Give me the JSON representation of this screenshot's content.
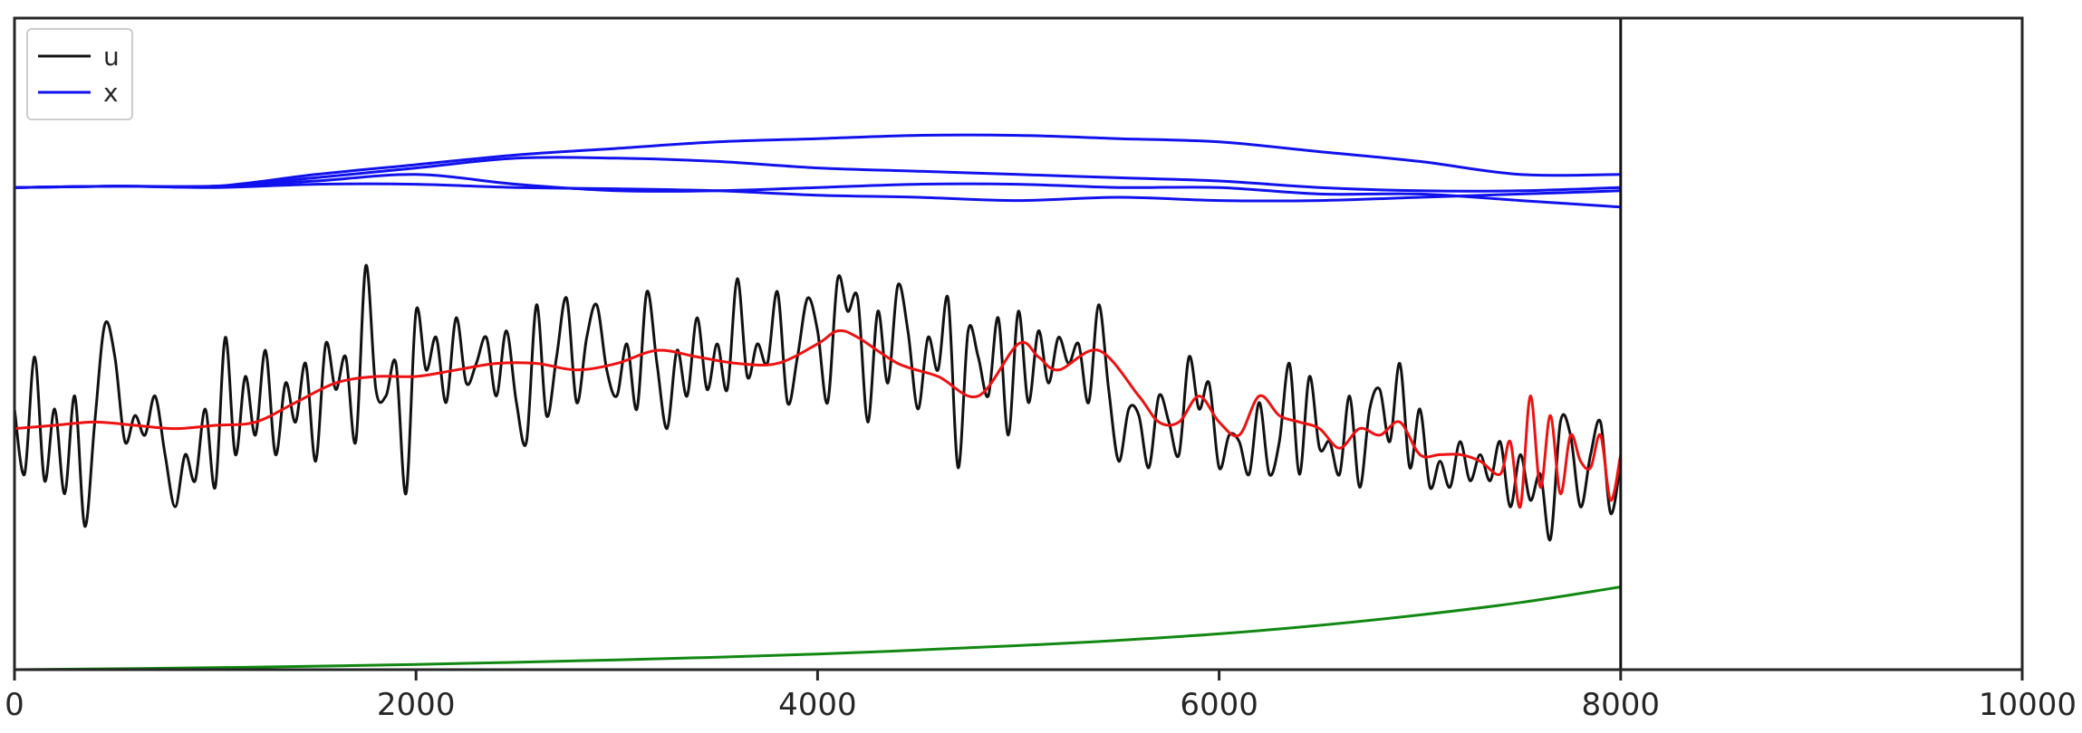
{
  "chart_data": {
    "type": "line",
    "title": "",
    "xlabel": "",
    "ylabel": "",
    "xlim": [
      0,
      10000
    ],
    "ylim": [
      0,
      1
    ],
    "x_ticks": [
      0,
      2000,
      4000,
      6000,
      8000,
      10000
    ],
    "x_tick_labels": [
      "0",
      "2000",
      "4000",
      "6000",
      "8000",
      "10000"
    ],
    "y_ticks_shown": false,
    "grid": false,
    "legend": {
      "placement": "top-left",
      "entries": [
        {
          "label": "u",
          "color": "#111111"
        },
        {
          "label": "x",
          "color": "#1111ee"
        }
      ]
    },
    "vline": {
      "x": 8000,
      "color": "#111111"
    },
    "series": [
      {
        "name": "u",
        "color": "#111111",
        "x": [
          0,
          50,
          100,
          150,
          200,
          250,
          300,
          350,
          400,
          450,
          500,
          550,
          600,
          650,
          700,
          750,
          800,
          850,
          900,
          950,
          1000,
          1050,
          1100,
          1150,
          1200,
          1250,
          1300,
          1350,
          1400,
          1450,
          1500,
          1550,
          1600,
          1650,
          1700,
          1750,
          1800,
          1850,
          1900,
          1950,
          2000,
          2050,
          2100,
          2150,
          2200,
          2250,
          2300,
          2350,
          2400,
          2450,
          2500,
          2550,
          2600,
          2650,
          2700,
          2750,
          2800,
          2850,
          2900,
          2950,
          3000,
          3050,
          3100,
          3150,
          3200,
          3250,
          3300,
          3350,
          3400,
          3450,
          3500,
          3550,
          3600,
          3650,
          3700,
          3750,
          3800,
          3850,
          3900,
          3950,
          4000,
          4050,
          4100,
          4150,
          4200,
          4250,
          4300,
          4350,
          4400,
          4450,
          4500,
          4550,
          4600,
          4650,
          4700,
          4750,
          4800,
          4850,
          4900,
          4950,
          5000,
          5050,
          5100,
          5150,
          5200,
          5250,
          5300,
          5350,
          5400,
          5450,
          5500,
          5550,
          5600,
          5650,
          5700,
          5750,
          5800,
          5850,
          5900,
          5950,
          6000,
          6050,
          6100,
          6150,
          6200,
          6250,
          6300,
          6350,
          6400,
          6450,
          6500,
          6550,
          6600,
          6650,
          6700,
          6750,
          6800,
          6850,
          6900,
          6950,
          7000,
          7050,
          7100,
          7150,
          7200,
          7250,
          7300,
          7350,
          7400,
          7450,
          7500,
          7550,
          7600,
          7650,
          7700,
          7750,
          7800,
          7850,
          7900,
          7950,
          8000
        ],
        "values": [
          0.4,
          0.3,
          0.48,
          0.29,
          0.4,
          0.27,
          0.42,
          0.22,
          0.38,
          0.53,
          0.48,
          0.35,
          0.39,
          0.36,
          0.42,
          0.33,
          0.25,
          0.33,
          0.29,
          0.4,
          0.28,
          0.51,
          0.33,
          0.45,
          0.36,
          0.49,
          0.33,
          0.44,
          0.38,
          0.47,
          0.32,
          0.5,
          0.43,
          0.48,
          0.35,
          0.62,
          0.43,
          0.42,
          0.47,
          0.27,
          0.55,
          0.46,
          0.51,
          0.41,
          0.54,
          0.44,
          0.47,
          0.51,
          0.42,
          0.52,
          0.41,
          0.35,
          0.56,
          0.39,
          0.48,
          0.57,
          0.41,
          0.51,
          0.56,
          0.46,
          0.42,
          0.5,
          0.4,
          0.58,
          0.47,
          0.37,
          0.49,
          0.42,
          0.54,
          0.43,
          0.5,
          0.43,
          0.6,
          0.45,
          0.5,
          0.47,
          0.58,
          0.41,
          0.48,
          0.57,
          0.52,
          0.41,
          0.6,
          0.55,
          0.57,
          0.38,
          0.55,
          0.44,
          0.59,
          0.52,
          0.4,
          0.51,
          0.46,
          0.57,
          0.31,
          0.52,
          0.48,
          0.42,
          0.54,
          0.36,
          0.55,
          0.41,
          0.52,
          0.44,
          0.51,
          0.47,
          0.5,
          0.41,
          0.56,
          0.43,
          0.32,
          0.4,
          0.39,
          0.31,
          0.42,
          0.38,
          0.33,
          0.48,
          0.4,
          0.44,
          0.31,
          0.36,
          0.35,
          0.3,
          0.41,
          0.3,
          0.35,
          0.47,
          0.3,
          0.45,
          0.34,
          0.35,
          0.3,
          0.42,
          0.28,
          0.4,
          0.43,
          0.35,
          0.47,
          0.31,
          0.4,
          0.28,
          0.32,
          0.28,
          0.35,
          0.29,
          0.33,
          0.29,
          0.35,
          0.25,
          0.33,
          0.26,
          0.3,
          0.2,
          0.38,
          0.36,
          0.25,
          0.33,
          0.38,
          0.24,
          0.32
        ],
        "smoothed": {
          "color": "#ee1111",
          "x": [
            0,
            200,
            400,
            600,
            800,
            1000,
            1200,
            1400,
            1600,
            1800,
            2000,
            2200,
            2400,
            2600,
            2800,
            3000,
            3200,
            3400,
            3600,
            3800,
            4000,
            4100,
            4200,
            4400,
            4600,
            4800,
            5000,
            5100,
            5200,
            5400,
            5600,
            5700,
            5800,
            5900,
            6000,
            6100,
            6200,
            6300,
            6400,
            6500,
            6600,
            6700,
            6800,
            6900,
            7000,
            7100,
            7200,
            7300,
            7400,
            7450,
            7500,
            7550,
            7600,
            7650,
            7700,
            7750,
            7800,
            7850,
            7900,
            7950,
            8000
          ],
          "values": [
            0.37,
            0.375,
            0.38,
            0.375,
            0.37,
            0.375,
            0.38,
            0.41,
            0.44,
            0.45,
            0.45,
            0.46,
            0.47,
            0.47,
            0.46,
            0.47,
            0.49,
            0.48,
            0.47,
            0.47,
            0.5,
            0.52,
            0.51,
            0.47,
            0.45,
            0.42,
            0.5,
            0.48,
            0.46,
            0.49,
            0.42,
            0.38,
            0.38,
            0.42,
            0.38,
            0.36,
            0.42,
            0.39,
            0.38,
            0.37,
            0.34,
            0.37,
            0.36,
            0.38,
            0.33,
            0.33,
            0.33,
            0.32,
            0.3,
            0.35,
            0.25,
            0.42,
            0.28,
            0.39,
            0.27,
            0.36,
            0.32,
            0.31,
            0.36,
            0.26,
            0.33
          ]
        }
      },
      {
        "name": "x",
        "color": "#1111ee",
        "lines": [
          {
            "x": [
              0,
              500,
              1000,
              1500,
              2000,
              2500,
              3000,
              3500,
              4000,
              4500,
              5000,
              5500,
              6000,
              6500,
              7000,
              7500,
              8000
            ],
            "values": [
              0.74,
              0.742,
              0.742,
              0.76,
              0.775,
              0.79,
              0.8,
              0.81,
              0.815,
              0.82,
              0.82,
              0.815,
              0.81,
              0.795,
              0.78,
              0.76,
              0.76
            ]
          },
          {
            "x": [
              0,
              500,
              1000,
              1500,
              2000,
              2500,
              3000,
              3500,
              4000,
              4500,
              5000,
              5500,
              6000,
              6500,
              7000,
              7500,
              8000
            ],
            "values": [
              0.74,
              0.742,
              0.742,
              0.755,
              0.77,
              0.785,
              0.785,
              0.78,
              0.77,
              0.765,
              0.76,
              0.755,
              0.75,
              0.74,
              0.735,
              0.735,
              0.74
            ]
          },
          {
            "x": [
              0,
              500,
              1000,
              1500,
              2000,
              2500,
              3000,
              3500,
              4000,
              4500,
              5000,
              5500,
              6000,
              6500,
              7000,
              7500,
              8000
            ],
            "values": [
              0.74,
              0.742,
              0.742,
              0.75,
              0.76,
              0.745,
              0.735,
              0.735,
              0.74,
              0.745,
              0.745,
              0.74,
              0.74,
              0.73,
              0.73,
              0.72,
              0.71
            ]
          },
          {
            "x": [
              0,
              500,
              1000,
              1500,
              2000,
              2500,
              3000,
              3500,
              4000,
              4500,
              5000,
              5500,
              6000,
              6500,
              7000,
              7500,
              8000
            ],
            "values": [
              0.74,
              0.742,
              0.74,
              0.745,
              0.745,
              0.74,
              0.738,
              0.735,
              0.728,
              0.725,
              0.72,
              0.725,
              0.72,
              0.72,
              0.725,
              0.73,
              0.735
            ]
          }
        ]
      },
      {
        "name": "",
        "color": "#118811",
        "x": [
          0,
          1000,
          2000,
          3000,
          4000,
          5000,
          5500,
          6000,
          6500,
          7000,
          7500,
          8000
        ],
        "values": [
          0.0,
          0.003,
          0.008,
          0.015,
          0.024,
          0.037,
          0.045,
          0.055,
          0.068,
          0.084,
          0.103,
          0.127
        ]
      }
    ]
  }
}
